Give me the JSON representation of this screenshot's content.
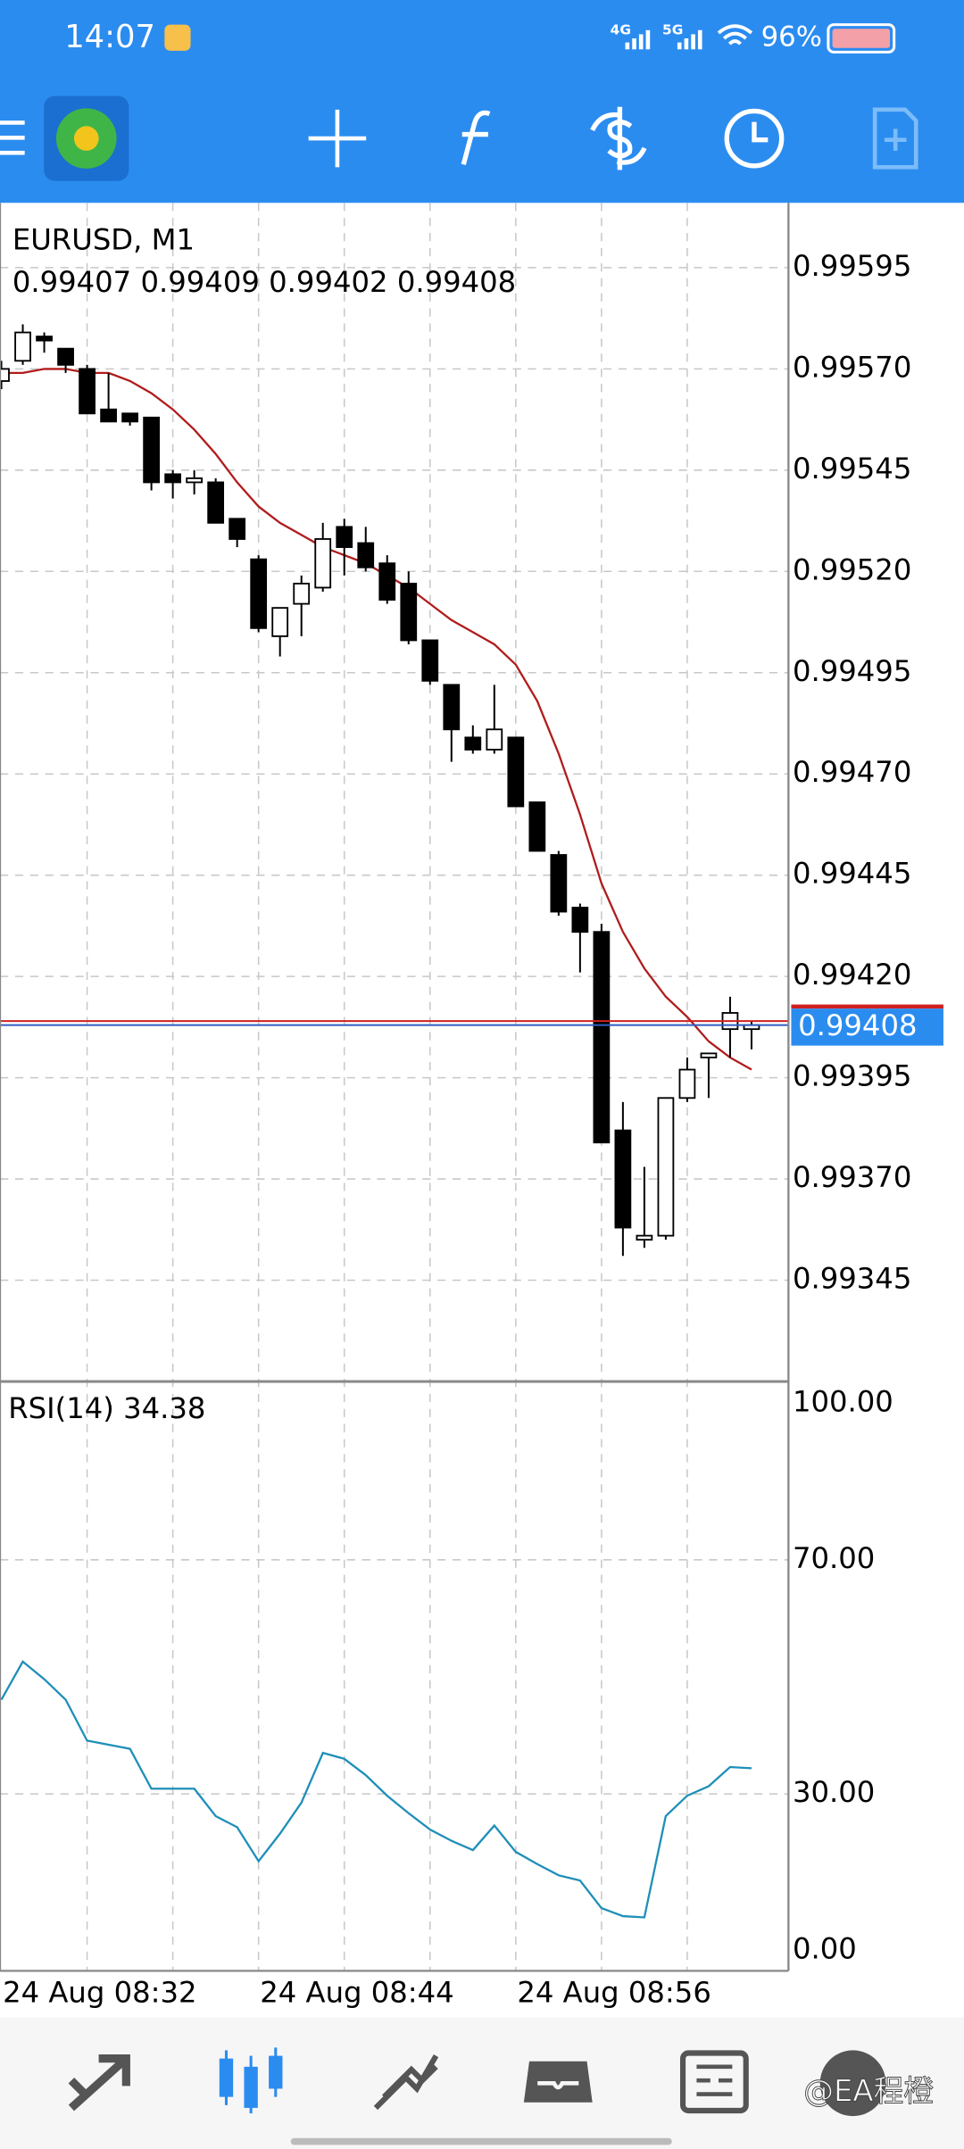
{
  "status_bar": {
    "time": "14:07",
    "network": [
      "4G",
      "5G"
    ],
    "battery": "96%"
  },
  "chart_data": [
    {
      "type": "candlestick",
      "title": "EURUSD, M1",
      "categories": [
        "24 Aug 08:32",
        null,
        null,
        null,
        null,
        null,
        null,
        null,
        null,
        null,
        null,
        null,
        "24 Aug 08:44",
        null,
        null,
        null,
        null,
        null,
        null,
        null,
        null,
        null,
        null,
        null,
        "24 Aug 08:56",
        null,
        null,
        null,
        null,
        null,
        null,
        null,
        null,
        null,
        null,
        null
      ],
      "open": [
        0.99567,
        0.99572,
        0.99578,
        0.99575,
        0.9957,
        0.9956,
        0.99559,
        0.99558,
        0.99544,
        0.99542,
        0.99542,
        0.99533,
        0.99523,
        0.99504,
        0.99512,
        0.99516,
        0.99531,
        0.99527,
        0.99522,
        0.99517,
        0.99503,
        0.99492,
        0.99479,
        0.99476,
        0.99479,
        0.99463,
        0.9945,
        0.99437,
        0.99431,
        0.99382,
        0.99355,
        0.99356,
        0.9939,
        0.994,
        0.99407,
        0.99407
      ],
      "high": [
        0.99572,
        0.99581,
        0.99579,
        0.99575,
        0.99571,
        0.99569,
        0.99559,
        0.99558,
        0.99545,
        0.99545,
        0.99543,
        0.99533,
        0.99524,
        0.99511,
        0.99519,
        0.99532,
        0.99533,
        0.99531,
        0.99524,
        0.9952,
        0.99503,
        0.99492,
        0.99482,
        0.99492,
        0.99479,
        0.99463,
        0.99451,
        0.99438,
        0.99433,
        0.99389,
        0.99373,
        0.9939,
        0.994,
        0.99401,
        0.99415,
        0.99409
      ],
      "low": [
        0.99565,
        0.99571,
        0.99574,
        0.99569,
        0.99559,
        0.99557,
        0.99556,
        0.9954,
        0.99538,
        0.99539,
        0.99532,
        0.99526,
        0.99505,
        0.99499,
        0.99504,
        0.99515,
        0.99519,
        0.9952,
        0.99512,
        0.99502,
        0.99492,
        0.99473,
        0.99475,
        0.99475,
        0.99462,
        0.99451,
        0.99435,
        0.99421,
        0.99379,
        0.99351,
        0.99353,
        0.99355,
        0.99389,
        0.9939,
        0.994,
        0.99402
      ],
      "close": [
        0.9957,
        0.99579,
        0.99577,
        0.99571,
        0.99559,
        0.99557,
        0.99557,
        0.99542,
        0.99542,
        0.99543,
        0.99532,
        0.99528,
        0.99506,
        0.99511,
        0.99517,
        0.99528,
        0.99526,
        0.99521,
        0.99513,
        0.99503,
        0.99493,
        0.99481,
        0.99476,
        0.99481,
        0.99462,
        0.99451,
        0.99436,
        0.99431,
        0.99379,
        0.99358,
        0.99356,
        0.9939,
        0.99397,
        0.99401,
        0.99411,
        0.99408
      ],
      "up_color": "#ffffff",
      "down_color": "#000000",
      "series": [
        {
          "color": "#b01c1c",
          "values": [
            0.99569,
            0.99569,
            0.9957,
            0.9957,
            0.99569,
            0.99569,
            0.99567,
            0.99564,
            0.9956,
            0.99555,
            0.99549,
            0.99542,
            0.99536,
            0.99532,
            0.99529,
            0.99526,
            0.99524,
            0.99522,
            0.99519,
            0.99516,
            0.99512,
            0.99508,
            0.99505,
            0.99502,
            0.99497,
            0.99488,
            0.99475,
            0.9946,
            0.99443,
            0.99431,
            0.99422,
            0.99415,
            0.9941,
            0.99404,
            0.994,
            0.99397
          ]
        }
      ],
      "ask": 0.99409,
      "bid_color": "#2f5fc0",
      "ask_color": "#d02020",
      "ylim": [
        0.9932,
        0.99611
      ],
      "yticks": [
        {
          "value": 0.99595,
          "label": "0.99595"
        },
        {
          "value": 0.9957,
          "label": "0.99570"
        },
        {
          "value": 0.99545,
          "label": "0.99545"
        },
        {
          "value": 0.9952,
          "label": "0.99520"
        },
        {
          "value": 0.99495,
          "label": "0.99495"
        },
        {
          "value": 0.9947,
          "label": "0.99470"
        },
        {
          "value": 0.99445,
          "label": "0.99445"
        },
        {
          "value": 0.9942,
          "label": "0.99420"
        },
        {
          "value": 0.99395,
          "label": "0.99395"
        },
        {
          "value": 0.9937,
          "label": "0.99370"
        },
        {
          "value": 0.99345,
          "label": "0.99345"
        }
      ],
      "grid": true
    },
    {
      "type": "line",
      "title": "RSI(14)",
      "series": [
        {
          "color": "#1f8fb8",
          "values": [
            46.1,
            52.6,
            49.6,
            46.1,
            39.1,
            38.4,
            37.7,
            30.9,
            30.9,
            30.9,
            26.2,
            24.3,
            18.5,
            23.2,
            28.5,
            37.0,
            36.0,
            33.2,
            29.7,
            26.7,
            23.9,
            22.0,
            20.4,
            24.6,
            20.1,
            18.0,
            16.1,
            15.2,
            10.5,
            9.1,
            8.9,
            26.2,
            29.7,
            31.3,
            34.6,
            34.38
          ]
        }
      ],
      "ylim": [
        0,
        100
      ],
      "yticks": [
        {
          "value": 100,
          "label": "100.00"
        },
        {
          "value": 70,
          "label": "70.00"
        },
        {
          "value": 30,
          "label": "30.00"
        },
        {
          "value": 0,
          "label": "0.00"
        }
      ],
      "grid": true
    }
  ],
  "watermark": "@EA程橙"
}
